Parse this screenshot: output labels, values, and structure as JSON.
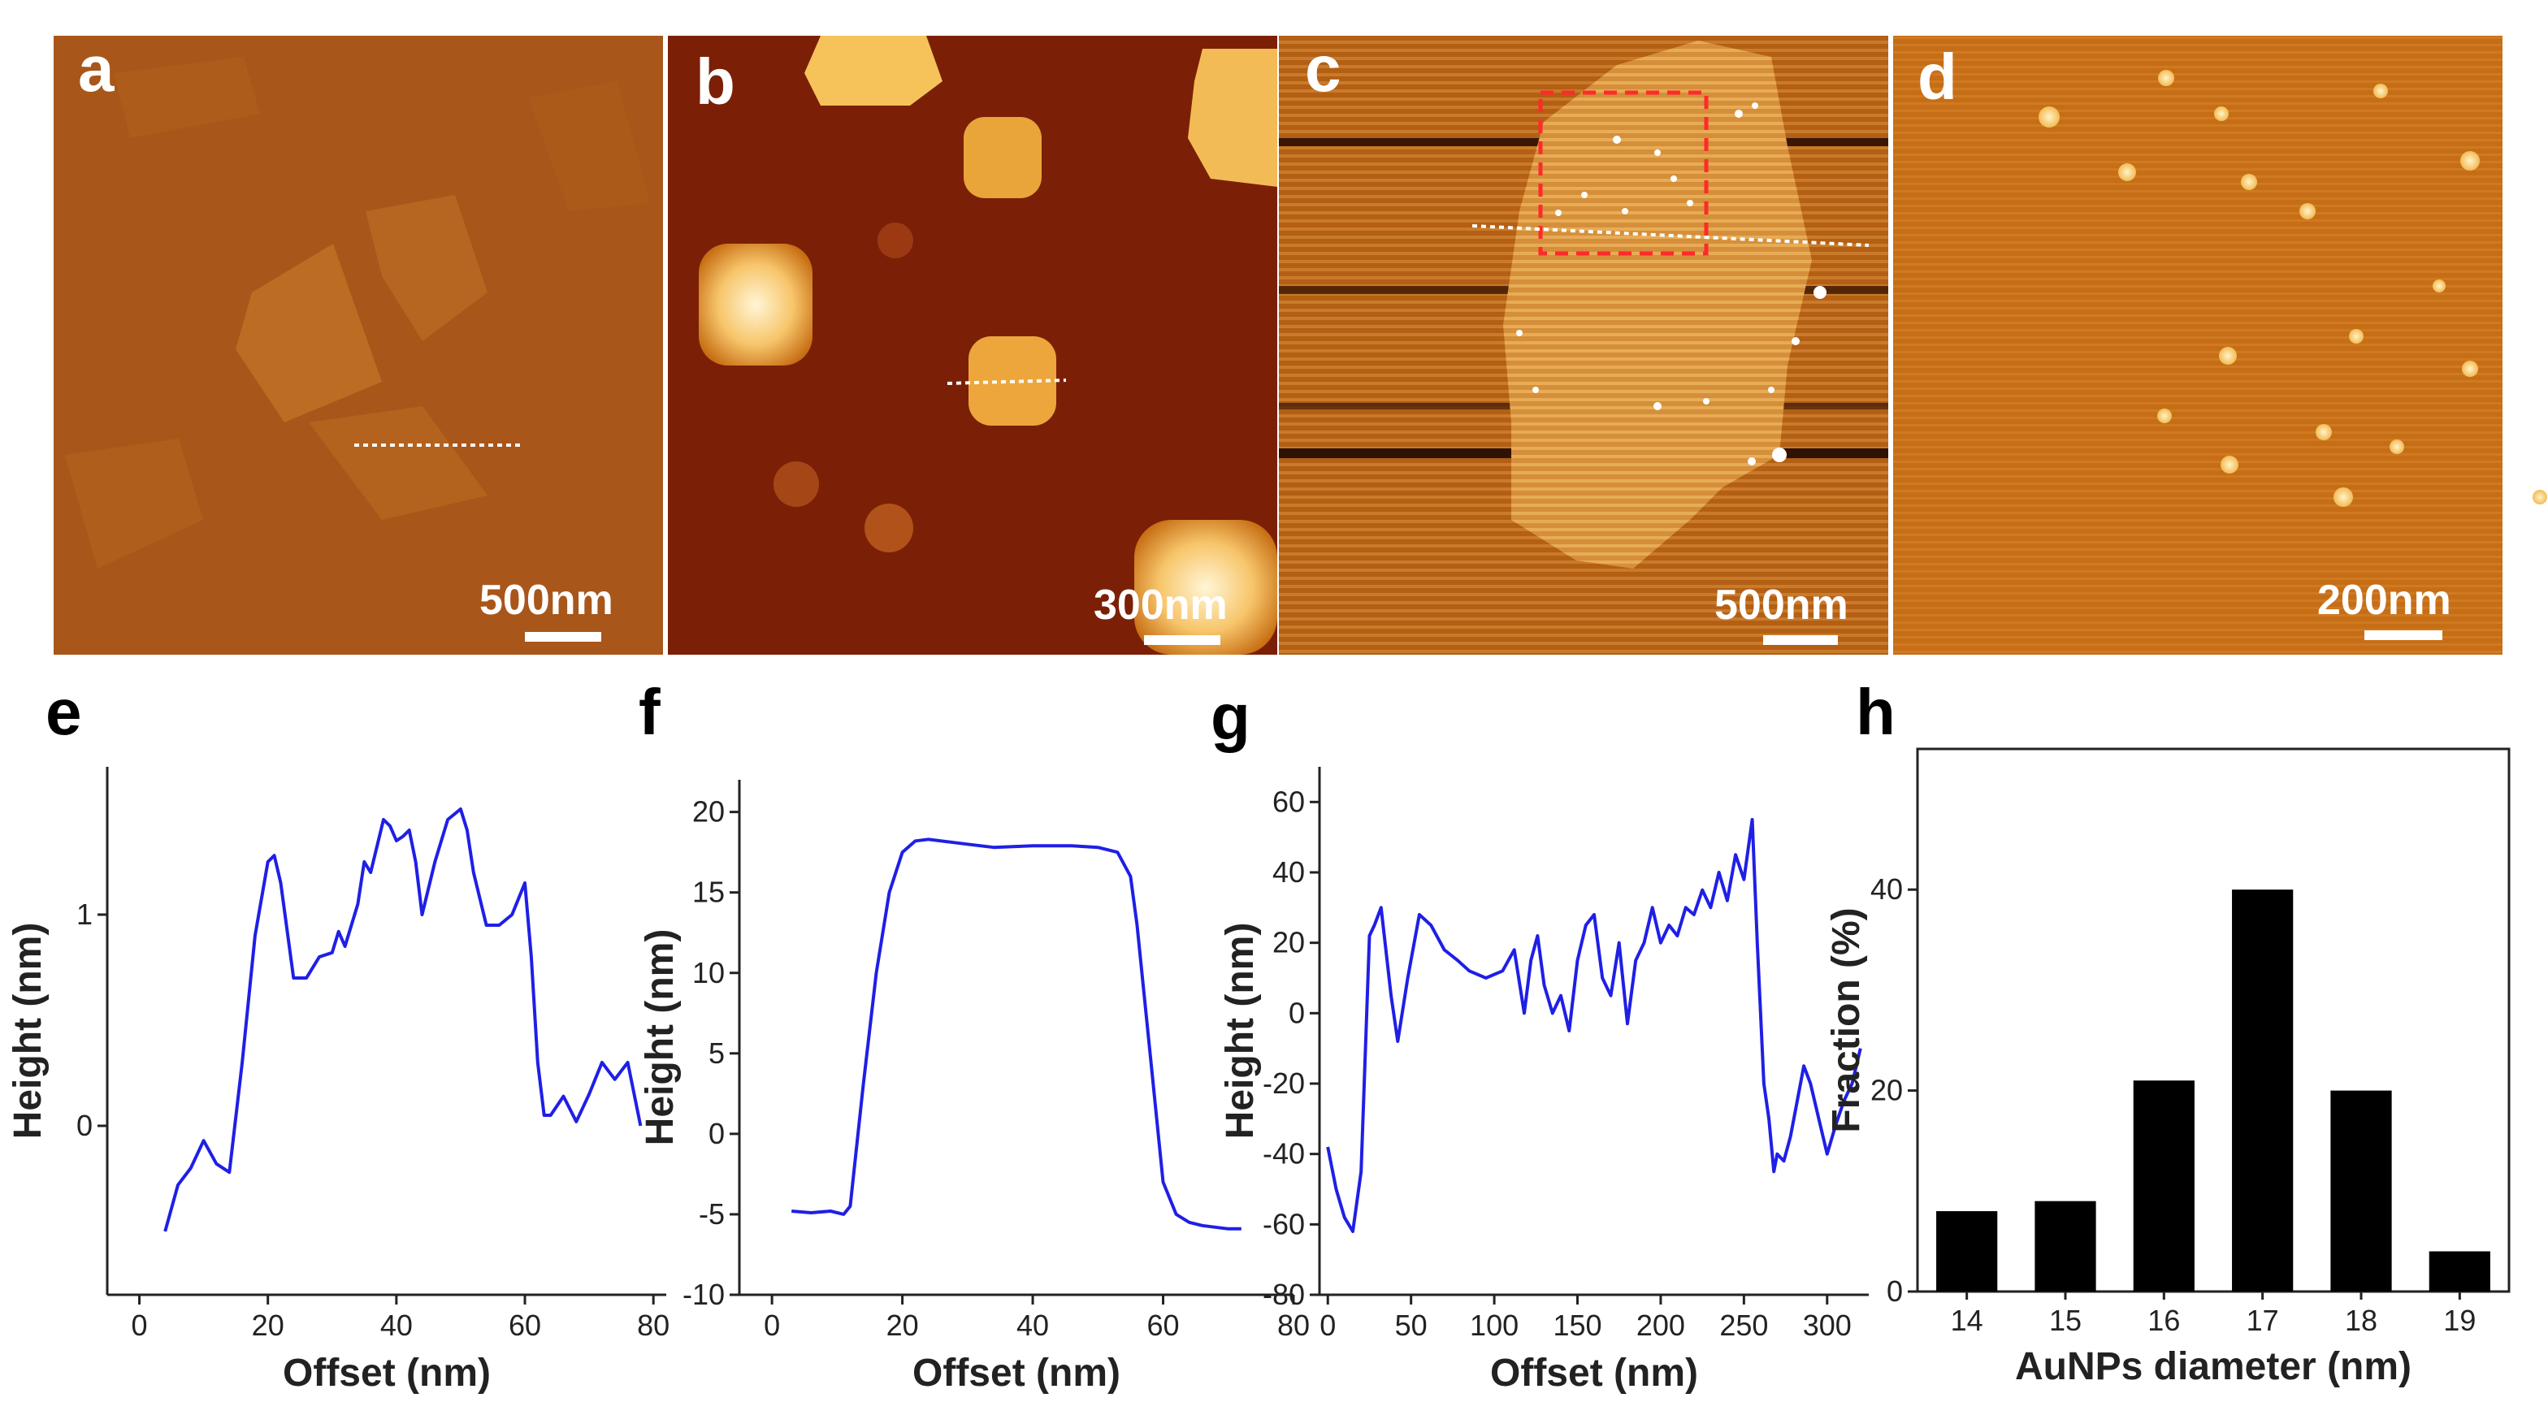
{
  "colors": {
    "curve": "#1f1fe6",
    "bar": "#000000",
    "axis": "#222222",
    "box_marker": "#ff2a2a",
    "scan_line": "#ffffff"
  },
  "panels_top": [
    {
      "letter": "a",
      "scale_bar": "500nm"
    },
    {
      "letter": "b",
      "scale_bar": "300nm"
    },
    {
      "letter": "c",
      "scale_bar": "500nm"
    },
    {
      "letter": "d",
      "scale_bar": "200nm"
    }
  ],
  "chart_data": [
    {
      "letter": "e",
      "type": "line",
      "xlabel": "Offset (nm)",
      "ylabel": "Height (nm)",
      "xlim": [
        -5,
        82
      ],
      "ylim": [
        -0.8,
        1.7
      ],
      "xticks": [
        0,
        20,
        40,
        60,
        80
      ],
      "yticks": [
        0,
        1
      ],
      "x": [
        4,
        6,
        8,
        10,
        12,
        14,
        16,
        18,
        20,
        21,
        22,
        24,
        26,
        28,
        30,
        31,
        32,
        34,
        35,
        36,
        38,
        39,
        40,
        41,
        42,
        43,
        44,
        46,
        48,
        50,
        51,
        52,
        54,
        56,
        58,
        60,
        61,
        62,
        63,
        64,
        66,
        68,
        70,
        72,
        74,
        76,
        78
      ],
      "y": [
        -0.5,
        -0.28,
        -0.2,
        -0.07,
        -0.18,
        -0.22,
        0.3,
        0.9,
        1.25,
        1.28,
        1.15,
        0.7,
        0.7,
        0.8,
        0.82,
        0.92,
        0.85,
        1.05,
        1.25,
        1.2,
        1.45,
        1.42,
        1.35,
        1.37,
        1.4,
        1.25,
        1.0,
        1.25,
        1.45,
        1.5,
        1.4,
        1.2,
        0.95,
        0.95,
        1.0,
        1.15,
        0.8,
        0.3,
        0.05,
        0.05,
        0.14,
        0.02,
        0.15,
        0.3,
        0.22,
        0.3,
        0.0
      ]
    },
    {
      "letter": "f",
      "type": "line",
      "xlabel": "Offset (nm)",
      "ylabel": "Height (nm)",
      "xlim": [
        -5,
        80
      ],
      "ylim": [
        -10,
        22
      ],
      "xticks": [
        0,
        20,
        40,
        60,
        80
      ],
      "yticks": [
        -10,
        -5,
        0,
        5,
        10,
        15,
        20
      ],
      "x": [
        3,
        6,
        9,
        11,
        12,
        14,
        16,
        18,
        20,
        22,
        24,
        30,
        34,
        40,
        46,
        50,
        53,
        55,
        56,
        58,
        60,
        62,
        64,
        66,
        68,
        70,
        72
      ],
      "y": [
        -4.8,
        -4.9,
        -4.8,
        -5.0,
        -4.5,
        3.0,
        10.0,
        15.0,
        17.5,
        18.2,
        18.3,
        18.0,
        17.8,
        17.9,
        17.9,
        17.8,
        17.5,
        16.0,
        13.0,
        5.0,
        -3.0,
        -5.0,
        -5.5,
        -5.7,
        -5.8,
        -5.9,
        -5.9
      ]
    },
    {
      "letter": "g",
      "type": "line",
      "xlabel": "Offset (nm)",
      "ylabel": "Height (nm)",
      "xlim": [
        -5,
        325
      ],
      "ylim": [
        -80,
        70
      ],
      "xticks": [
        0,
        50,
        100,
        150,
        200,
        250,
        300
      ],
      "yticks": [
        -80,
        -60,
        -40,
        -20,
        0,
        20,
        40,
        60
      ],
      "x": [
        0,
        5,
        10,
        15,
        20,
        25,
        28,
        32,
        38,
        42,
        48,
        55,
        62,
        70,
        78,
        85,
        95,
        105,
        112,
        118,
        122,
        126,
        130,
        135,
        140,
        145,
        150,
        155,
        160,
        165,
        170,
        175,
        180,
        185,
        190,
        195,
        200,
        205,
        210,
        215,
        220,
        225,
        230,
        235,
        240,
        245,
        250,
        255,
        258,
        262,
        265,
        268,
        270,
        274,
        278,
        282,
        286,
        290,
        295,
        300,
        305,
        310,
        315,
        320
      ],
      "y": [
        -38,
        -50,
        -58,
        -62,
        -45,
        22,
        25,
        30,
        5,
        -8,
        10,
        28,
        25,
        18,
        15,
        12,
        10,
        12,
        18,
        0,
        15,
        22,
        8,
        0,
        5,
        -5,
        15,
        25,
        28,
        10,
        5,
        20,
        -3,
        15,
        20,
        30,
        20,
        25,
        22,
        30,
        28,
        35,
        30,
        40,
        32,
        45,
        38,
        55,
        20,
        -20,
        -30,
        -45,
        -40,
        -42,
        -35,
        -25,
        -15,
        -20,
        -30,
        -40,
        -32,
        -25,
        -20,
        -10
      ]
    },
    {
      "letter": "h",
      "type": "bar",
      "xlabel": "AuNPs diameter (nm)",
      "ylabel": "Fraction (%)",
      "categories": [
        "14",
        "15",
        "16",
        "17",
        "18",
        "19"
      ],
      "values": [
        8,
        9,
        21,
        40,
        20,
        4
      ],
      "ylim": [
        0,
        54
      ],
      "yticks": [
        0,
        20,
        40
      ]
    }
  ]
}
